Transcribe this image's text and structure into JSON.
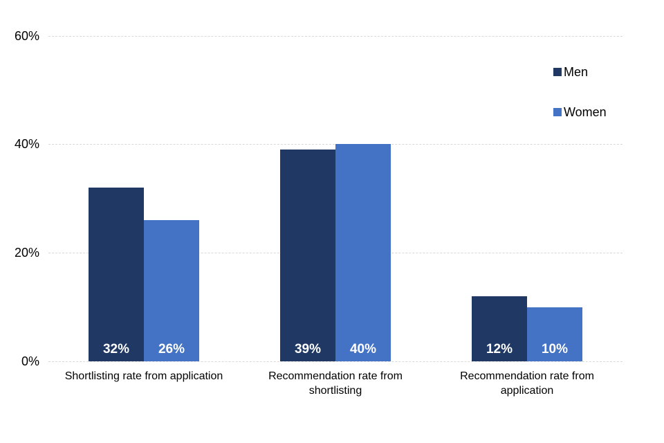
{
  "chart_data": {
    "type": "bar",
    "title": "",
    "categories": [
      "Shortlisting rate from application",
      "Recommendation rate from shortlisting",
      "Recommendation rate from application"
    ],
    "series": [
      {
        "name": "Men",
        "color": "#1F3864",
        "values": [
          32,
          39,
          12
        ],
        "data_labels": [
          "32%",
          "39%",
          "12%"
        ]
      },
      {
        "name": "Women",
        "color": "#4472C4",
        "values": [
          26,
          40,
          10
        ],
        "data_labels": [
          "26%",
          "40%",
          "10%"
        ]
      }
    ],
    "y_axis": {
      "ticks": [
        {
          "label": "0%",
          "value": 0
        },
        {
          "label": "20%",
          "value": 20
        },
        {
          "label": "40%",
          "value": 40
        },
        {
          "label": "60%",
          "value": 60
        }
      ],
      "min": 0,
      "max": 60,
      "unit": "%"
    },
    "xlabel": "",
    "ylabel": "",
    "grid": "horizontal-dashed",
    "legend_position": "top-right",
    "data_label_color": "#FFFFFF"
  },
  "colors": {
    "background": "#FFFFFF",
    "gridline": "#D9D9D9",
    "axis_text": "#000000"
  }
}
